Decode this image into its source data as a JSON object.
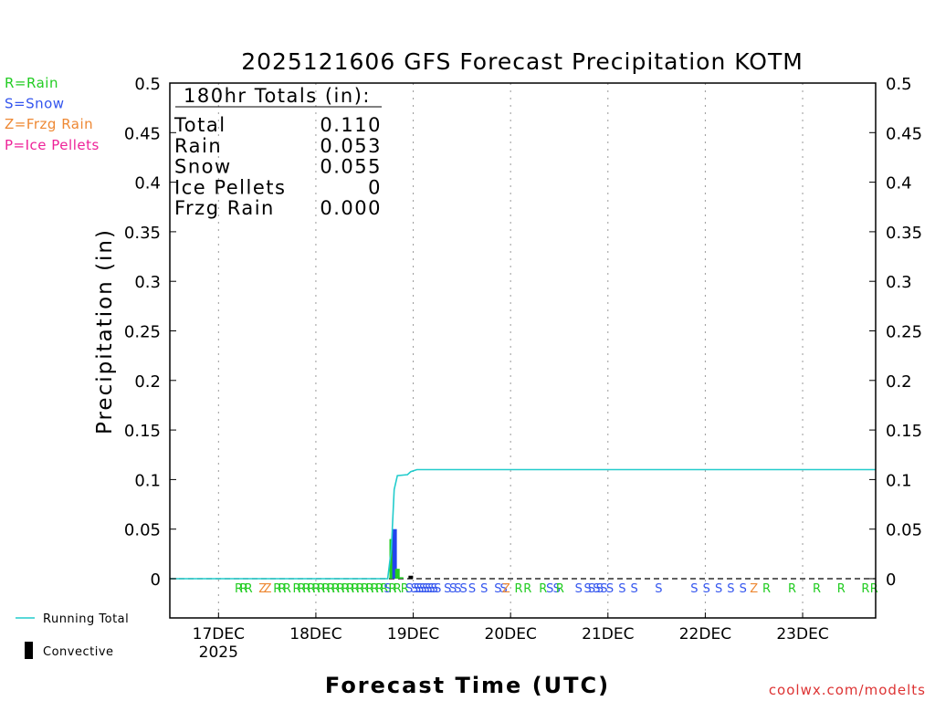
{
  "chart_data": {
    "type": "bar",
    "title": "2025121606 GFS Forecast Precipitation KOTM",
    "xlabel": "Forecast Time (UTC)",
    "ylabel": "Precipitation (in)",
    "ylim": [
      0,
      0.5
    ],
    "y_ticks": [
      "0",
      "0.05",
      "0.1",
      "0.15",
      "0.2",
      "0.25",
      "0.3",
      "0.35",
      "0.4",
      "0.45",
      "0.5"
    ],
    "y_min_display": -0.04,
    "x_range_hours": [
      6,
      180
    ],
    "x_ticks": [
      {
        "hour": 18,
        "label": "17DEC"
      },
      {
        "hour": 42,
        "label": "18DEC"
      },
      {
        "hour": 66,
        "label": "19DEC"
      },
      {
        "hour": 90,
        "label": "20DEC"
      },
      {
        "hour": 114,
        "label": "21DEC"
      },
      {
        "hour": 138,
        "label": "22DEC"
      },
      {
        "hour": 162,
        "label": "23DEC"
      }
    ],
    "year_label": "2025",
    "totals_box": {
      "header": "180hr Totals (in):",
      "rows": [
        {
          "label": "Total",
          "value": "0.110"
        },
        {
          "label": "Rain",
          "value": "0.053"
        },
        {
          "label": "Snow",
          "value": "0.055"
        },
        {
          "label": "Ice Pellets",
          "value": "0"
        },
        {
          "label": "Frzg Rain",
          "value": "0.000"
        }
      ]
    },
    "legend_types": [
      {
        "text": "R=Rain",
        "color": "#22cc22"
      },
      {
        "text": "S=Snow",
        "color": "#3355ee"
      },
      {
        "text": "Z=Frzg Rain",
        "color": "#ee8833"
      },
      {
        "text": "P=Ice Pellets",
        "color": "#ee2299"
      }
    ],
    "legend_series": [
      {
        "name": "Running Total",
        "color": "#22cccc"
      },
      {
        "name": "Convective",
        "color": "#000000"
      }
    ],
    "bars": [
      {
        "hour": 60.7,
        "value": 0.04,
        "type": "rain",
        "color": "#22cc22"
      },
      {
        "hour": 61.4,
        "value": 0.05,
        "type": "snow",
        "color": "#2244ee"
      },
      {
        "hour": 62.1,
        "value": 0.01,
        "type": "rain",
        "color": "#22cc22"
      },
      {
        "hour": 63.0,
        "value": 0.0015,
        "type": "rain",
        "color": "#22cc22"
      },
      {
        "hour": 65.4,
        "value": 0.003,
        "type": "convective",
        "color": "#000000"
      }
    ],
    "running_total": [
      [
        6,
        0
      ],
      [
        59.7,
        0
      ],
      [
        60.6,
        0.03
      ],
      [
        61.3,
        0.09
      ],
      [
        62.1,
        0.104
      ],
      [
        64.6,
        0.105
      ],
      [
        65.4,
        0.108
      ],
      [
        66.9,
        0.11
      ],
      [
        150,
        0.11
      ],
      [
        180,
        0.11
      ]
    ],
    "ptype_markers": [
      {
        "hour": 23.0,
        "ch": "R"
      },
      {
        "hour": 24.2,
        "ch": "R"
      },
      {
        "hour": 25.4,
        "ch": "R"
      },
      {
        "hour": 28.9,
        "ch": "Z"
      },
      {
        "hour": 30.1,
        "ch": "Z"
      },
      {
        "hour": 32.5,
        "ch": "R"
      },
      {
        "hour": 33.7,
        "ch": "R"
      },
      {
        "hour": 34.9,
        "ch": "R"
      },
      {
        "hour": 37.3,
        "ch": "R"
      },
      {
        "hour": 38.5,
        "ch": "R"
      },
      {
        "hour": 39.7,
        "ch": "R"
      },
      {
        "hour": 40.9,
        "ch": "R"
      },
      {
        "hour": 42.1,
        "ch": "R"
      },
      {
        "hour": 43.3,
        "ch": "R"
      },
      {
        "hour": 44.5,
        "ch": "R"
      },
      {
        "hour": 45.7,
        "ch": "R"
      },
      {
        "hour": 46.9,
        "ch": "R"
      },
      {
        "hour": 48.1,
        "ch": "R"
      },
      {
        "hour": 49.3,
        "ch": "R"
      },
      {
        "hour": 50.5,
        "ch": "R"
      },
      {
        "hour": 51.7,
        "ch": "R"
      },
      {
        "hour": 52.9,
        "ch": "R"
      },
      {
        "hour": 54.1,
        "ch": "R"
      },
      {
        "hour": 55.3,
        "ch": "R"
      },
      {
        "hour": 56.5,
        "ch": "R"
      },
      {
        "hour": 57.7,
        "ch": "R"
      },
      {
        "hour": 58.9,
        "ch": "R"
      },
      {
        "hour": 59.7,
        "ch": "S"
      },
      {
        "hour": 60.9,
        "ch": "R"
      },
      {
        "hour": 62.1,
        "ch": "R"
      },
      {
        "hour": 63.9,
        "ch": "R"
      },
      {
        "hour": 65.0,
        "ch": "S"
      },
      {
        "hour": 66.3,
        "ch": "S"
      },
      {
        "hour": 67.0,
        "ch": "S"
      },
      {
        "hour": 67.7,
        "ch": "S"
      },
      {
        "hour": 68.4,
        "ch": "S"
      },
      {
        "hour": 69.1,
        "ch": "S"
      },
      {
        "hour": 69.8,
        "ch": "S"
      },
      {
        "hour": 70.5,
        "ch": "S"
      },
      {
        "hour": 71.2,
        "ch": "S"
      },
      {
        "hour": 72.0,
        "ch": "S"
      },
      {
        "hour": 74.5,
        "ch": "S"
      },
      {
        "hour": 75.8,
        "ch": "S"
      },
      {
        "hour": 77.0,
        "ch": "S"
      },
      {
        "hour": 78.4,
        "ch": "S"
      },
      {
        "hour": 80.5,
        "ch": "S"
      },
      {
        "hour": 83.5,
        "ch": "S"
      },
      {
        "hour": 86.9,
        "ch": "S"
      },
      {
        "hour": 88.3,
        "ch": "S"
      },
      {
        "hour": 88.9,
        "ch": "Z"
      },
      {
        "hour": 92.0,
        "ch": "R"
      },
      {
        "hour": 94.2,
        "ch": "R"
      },
      {
        "hour": 98.0,
        "ch": "R"
      },
      {
        "hour": 99.7,
        "ch": "S"
      },
      {
        "hour": 101.4,
        "ch": "S"
      },
      {
        "hour": 102.2,
        "ch": "R"
      },
      {
        "hour": 106.8,
        "ch": "S"
      },
      {
        "hour": 109.0,
        "ch": "S"
      },
      {
        "hour": 110.0,
        "ch": "S"
      },
      {
        "hour": 111.2,
        "ch": "S"
      },
      {
        "hour": 112.0,
        "ch": "S"
      },
      {
        "hour": 113.0,
        "ch": "S"
      },
      {
        "hour": 114.5,
        "ch": "S"
      },
      {
        "hour": 117.5,
        "ch": "S"
      },
      {
        "hour": 120.5,
        "ch": "S"
      },
      {
        "hour": 126.5,
        "ch": "S"
      },
      {
        "hour": 135.3,
        "ch": "S"
      },
      {
        "hour": 138.3,
        "ch": "S"
      },
      {
        "hour": 141.3,
        "ch": "S"
      },
      {
        "hour": 144.3,
        "ch": "S"
      },
      {
        "hour": 147.3,
        "ch": "S"
      },
      {
        "hour": 150.0,
        "ch": "Z"
      },
      {
        "hour": 153.1,
        "ch": "R"
      },
      {
        "hour": 159.4,
        "ch": "R"
      },
      {
        "hour": 165.5,
        "ch": "R"
      },
      {
        "hour": 171.5,
        "ch": "R"
      },
      {
        "hour": 177.5,
        "ch": "R"
      },
      {
        "hour": 179.6,
        "ch": "R"
      }
    ],
    "ptype_colors": {
      "R": "#22cc22",
      "S": "#3355ee",
      "Z": "#ee8833",
      "P": "#ee2299"
    },
    "credit": "coolwx.com/modelts",
    "credit_color": "#dd3333"
  }
}
